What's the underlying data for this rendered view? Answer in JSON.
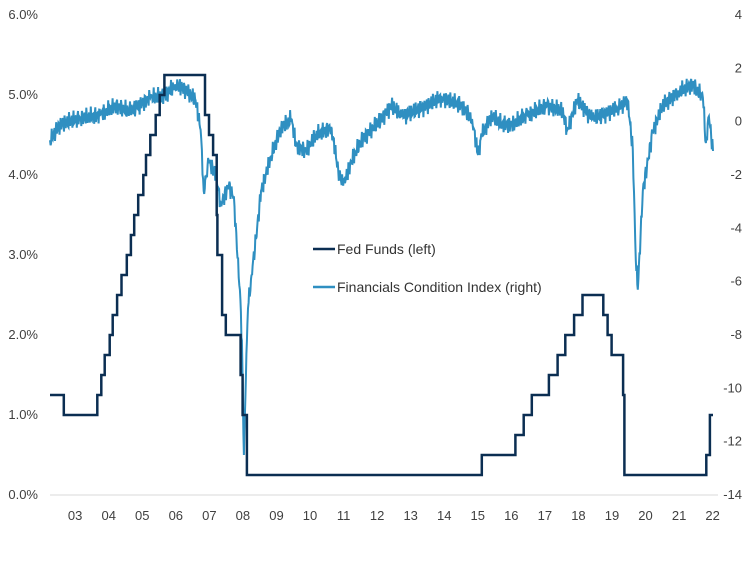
{
  "chart_data": {
    "type": "line",
    "title": "",
    "left_axis": {
      "ylim": [
        0,
        6
      ],
      "ticks": [
        0,
        1,
        2,
        3,
        4,
        5,
        6
      ],
      "tick_labels": [
        "0.0%",
        "1.0%",
        "2.0%",
        "3.0%",
        "4.0%",
        "5.0%",
        "6.0%"
      ]
    },
    "right_axis": {
      "ylim": [
        -14,
        4
      ],
      "ticks": [
        -14,
        -12,
        -10,
        -8,
        -6,
        -4,
        -2,
        0,
        2,
        4
      ],
      "tick_labels": [
        "-14",
        "-12",
        "-10",
        "-8",
        "-6",
        "-4",
        "-2",
        "0",
        "2",
        "4"
      ]
    },
    "x_axis": {
      "xlim": [
        2003.09,
        2023.0
      ],
      "tick_labels": [
        "03",
        "04",
        "05",
        "06",
        "07",
        "08",
        "09",
        "10",
        "11",
        "12",
        "13",
        "14",
        "15",
        "16",
        "17",
        "18",
        "19",
        "20",
        "21",
        "22"
      ],
      "tick_values": [
        2003.84,
        2004.84,
        2005.84,
        2006.84,
        2007.84,
        2008.84,
        2009.84,
        2010.84,
        2011.84,
        2012.84,
        2013.84,
        2014.84,
        2015.84,
        2016.84,
        2017.84,
        2018.84,
        2019.84,
        2020.84,
        2021.84,
        2022.84
      ]
    },
    "grid": false,
    "legend_position": "center",
    "series": [
      {
        "name": "Fed Funds (left)",
        "axis": "left",
        "color": "#0b2e52",
        "step": true,
        "x": [
          2003.09,
          2003.5,
          2004.5,
          2004.62,
          2004.72,
          2004.87,
          2004.96,
          2005.09,
          2005.22,
          2005.38,
          2005.5,
          2005.6,
          2005.72,
          2005.87,
          2005.95,
          2006.08,
          2006.24,
          2006.36,
          2006.5,
          2007.71,
          2007.83,
          2007.95,
          2008.06,
          2008.08,
          2008.22,
          2008.33,
          2008.77,
          2008.83,
          2008.96,
          2015.96,
          2016.96,
          2017.21,
          2017.45,
          2017.96,
          2018.22,
          2018.45,
          2018.71,
          2018.96,
          2019.58,
          2019.71,
          2019.83,
          2020.17,
          2020.21,
          2022.65,
          2022.76,
          2022.85
        ],
        "values": [
          1.25,
          1.0,
          1.25,
          1.5,
          1.75,
          2.0,
          2.25,
          2.5,
          2.75,
          3.0,
          3.25,
          3.5,
          3.75,
          4.0,
          4.25,
          4.5,
          4.75,
          5.0,
          5.25,
          4.75,
          4.5,
          4.25,
          3.5,
          3.0,
          2.25,
          2.0,
          1.5,
          1.0,
          0.25,
          0.5,
          0.75,
          1.0,
          1.25,
          1.5,
          1.75,
          2.0,
          2.25,
          2.5,
          2.25,
          2.0,
          1.75,
          1.25,
          0.25,
          0.5,
          1.0,
          1.0
        ]
      },
      {
        "name": "Financials Condition Index (right)",
        "axis": "right",
        "color": "#2f8fc1",
        "step": false,
        "x": [
          2003.09,
          2003.39,
          2003.99,
          2004.59,
          2005.04,
          2005.49,
          2006.08,
          2006.53,
          2006.83,
          2007.13,
          2007.43,
          2007.58,
          2007.67,
          2007.82,
          2008.03,
          2008.18,
          2008.42,
          2008.57,
          2008.66,
          2008.75,
          2008.81,
          2008.84,
          2008.87,
          2008.93,
          2008.99,
          2009.08,
          2009.23,
          2009.38,
          2009.68,
          2009.98,
          2010.28,
          2010.43,
          2010.73,
          2011.02,
          2011.47,
          2011.68,
          2011.83,
          2012.07,
          2012.37,
          2012.97,
          2013.27,
          2013.57,
          2014.17,
          2014.77,
          2015.37,
          2015.67,
          2015.85,
          2015.96,
          2016.26,
          2016.56,
          2016.86,
          2017.31,
          2017.91,
          2018.36,
          2018.51,
          2018.81,
          2019.26,
          2019.56,
          2020.01,
          2020.31,
          2020.46,
          2020.55,
          2020.61,
          2020.76,
          2021.05,
          2021.35,
          2021.8,
          2022.25,
          2022.55,
          2022.64,
          2022.73,
          2022.85
        ],
        "values": [
          -0.7,
          -0.1,
          0.15,
          0.25,
          0.6,
          0.4,
          0.9,
          1.0,
          1.4,
          1.2,
          0.8,
          -0.3,
          -2.6,
          -1.5,
          -2.0,
          -3.1,
          -2.4,
          -2.8,
          -4.8,
          -6.3,
          -8.2,
          -10.4,
          -12.5,
          -9.6,
          -7.0,
          -5.9,
          -4.4,
          -2.6,
          -1.3,
          -0.2,
          0.1,
          -0.9,
          -1.1,
          -0.5,
          -0.2,
          -1.8,
          -2.4,
          -1.5,
          -0.7,
          0.1,
          0.6,
          0.2,
          0.5,
          0.9,
          0.6,
          0.1,
          -1.25,
          -0.5,
          0.25,
          -0.1,
          -0.1,
          0.25,
          0.6,
          0.4,
          -0.3,
          0.8,
          0.1,
          0.25,
          0.5,
          0.8,
          -1.05,
          -5.2,
          -6.3,
          -2.6,
          -0.4,
          0.6,
          1.1,
          1.4,
          0.9,
          -0.8,
          0.2,
          -1.1
        ]
      }
    ]
  }
}
